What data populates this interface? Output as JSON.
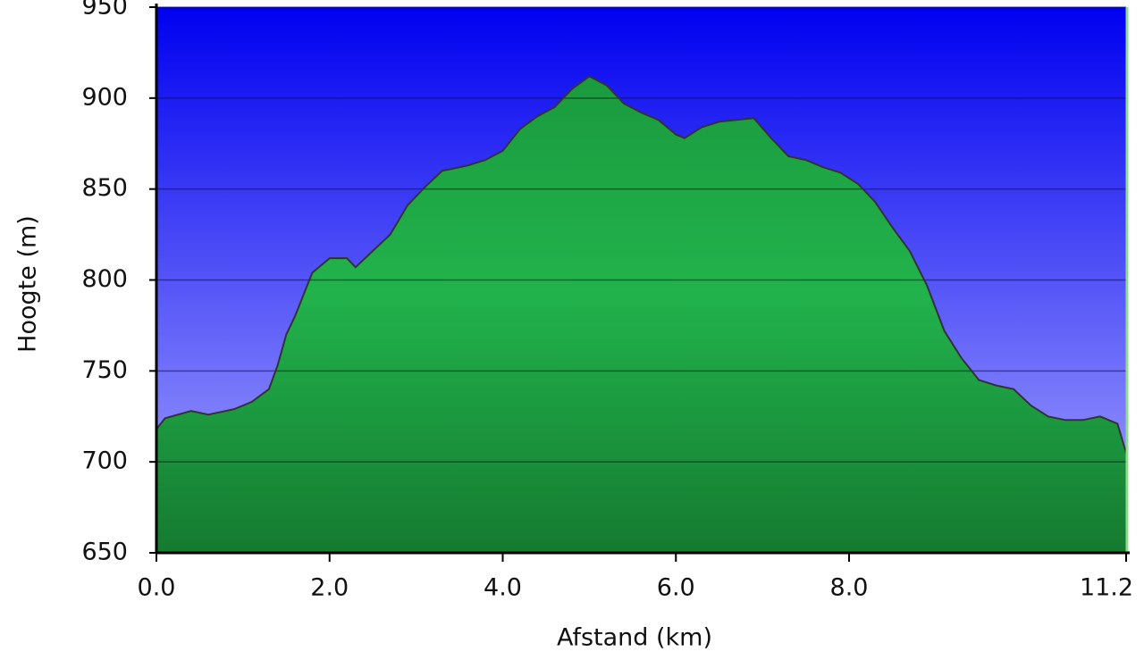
{
  "chart_data": {
    "type": "area",
    "y_label": "Hoogte (m)",
    "x_label": "Afstand (km)",
    "x": [
      0.0,
      0.1,
      0.4,
      0.6,
      0.9,
      1.1,
      1.3,
      1.4,
      1.5,
      1.6,
      1.8,
      2.0,
      2.2,
      2.3,
      2.5,
      2.7,
      2.9,
      3.1,
      3.3,
      3.6,
      3.8,
      4.0,
      4.2,
      4.4,
      4.6,
      4.8,
      5.0,
      5.2,
      5.4,
      5.6,
      5.8,
      6.0,
      6.1,
      6.3,
      6.5,
      6.7,
      6.9,
      7.1,
      7.3,
      7.5,
      7.7,
      7.9,
      8.1,
      8.3,
      8.5,
      8.7,
      8.9,
      9.1,
      9.3,
      9.5,
      9.7,
      9.9,
      10.1,
      10.3,
      10.5,
      10.7,
      10.9,
      11.1,
      11.2
    ],
    "values": [
      718,
      724,
      728,
      726,
      729,
      733,
      740,
      753,
      770,
      780,
      804,
      812,
      812,
      807,
      816,
      825,
      841,
      851,
      860,
      863,
      866,
      871,
      883,
      890,
      895,
      905,
      912,
      907,
      897,
      892,
      888,
      880,
      878,
      884,
      887,
      888,
      889,
      878,
      868,
      866,
      862,
      859,
      853,
      843,
      829,
      816,
      797,
      772,
      757,
      745,
      742,
      740,
      731,
      725,
      723,
      723,
      725,
      721,
      705
    ],
    "color": "#22b04a",
    "xlim": [
      0,
      11.2
    ],
    "ylim": [
      650,
      950
    ],
    "xticks": [
      {
        "value": 0,
        "label": "0.0"
      },
      {
        "value": 2,
        "label": "2.0"
      },
      {
        "value": 4,
        "label": "4.0"
      },
      {
        "value": 6,
        "label": "6.0"
      },
      {
        "value": 8,
        "label": "8.0"
      },
      11.2
    ],
    "yticks": [
      650,
      700,
      750,
      800,
      850,
      900,
      950
    ],
    "grid": true
  }
}
